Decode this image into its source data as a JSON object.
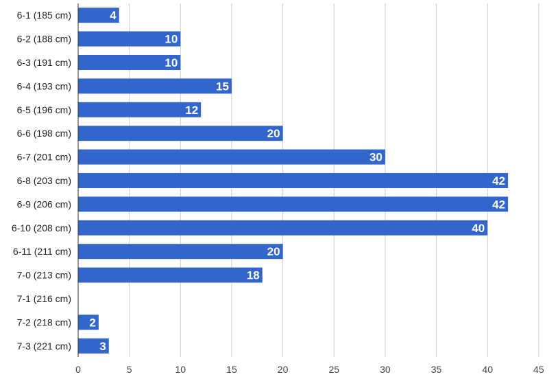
{
  "chart_data": {
    "type": "bar",
    "orientation": "horizontal",
    "categories": [
      "6-1 (185 cm)",
      "6-2 (188 cm)",
      "6-3 (191 cm)",
      "6-4 (193 cm)",
      "6-5 (196 cm)",
      "6-6 (198 cm)",
      "6-7 (201 cm)",
      "6-8 (203 cm)",
      "6-9 (206 cm)",
      "6-10 (208 cm)",
      "6-11 (211 cm)",
      "7-0 (213 cm)",
      "7-1 (216 cm)",
      "7-2 (218 cm)",
      "7-3 (221 cm)"
    ],
    "values": [
      4,
      10,
      10,
      15,
      12,
      20,
      30,
      42,
      42,
      40,
      20,
      18,
      null,
      2,
      3
    ],
    "data_labels": [
      "4",
      "10",
      "10",
      "15",
      "12",
      "20",
      "30",
      "42",
      "42",
      "40",
      "20",
      "18",
      "",
      "2",
      "3"
    ],
    "x_ticks": [
      "0",
      "5",
      "10",
      "15",
      "20",
      "25",
      "30",
      "35",
      "40",
      "45"
    ],
    "xlim": [
      0,
      45
    ],
    "grid": true,
    "title": "",
    "xlabel": "",
    "ylabel": "",
    "bar_color": "#3366cc",
    "grid_color": "#cccccc",
    "axis_color": "#333333"
  }
}
